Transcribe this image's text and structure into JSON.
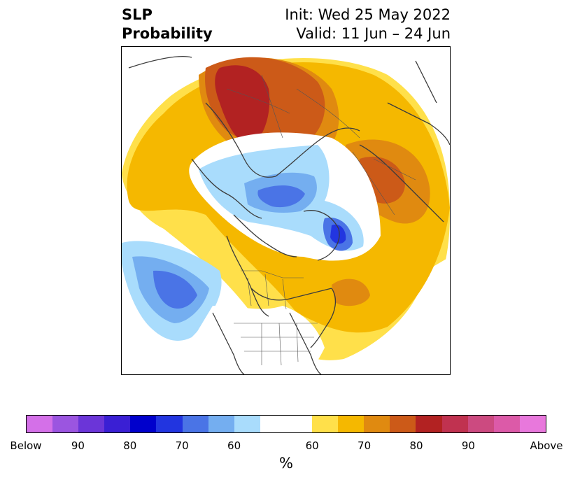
{
  "header": {
    "title_line1": "SLP",
    "title_line2": "Probability",
    "init_text": "Init: Wed 25 May 2022",
    "valid_text": "Valid: 11 Jun – 24 Jun"
  },
  "map": {
    "projection": "north-polar-stereographic",
    "coastline_color": "#3c3c3c",
    "anomalies": [
      {
        "region": "northern-europe-scandinavia",
        "sign": "above",
        "peak_category": "75-80"
      },
      {
        "region": "siberia-central-asia",
        "sign": "above",
        "peak_category": "70-75"
      },
      {
        "region": "north-atlantic-east-of-canada",
        "sign": "above",
        "peak_category": "65-70"
      },
      {
        "region": "north-pacific",
        "sign": "below",
        "peak_category": "70-75"
      },
      {
        "region": "arctic-ocean-barents",
        "sign": "below",
        "peak_category": "70-75"
      },
      {
        "region": "beaufort-sea",
        "sign": "below",
        "peak_category": "80-85"
      }
    ]
  },
  "colorbar": {
    "unit_label": "%",
    "colors": [
      "#d470e8",
      "#9b55e0",
      "#6b35d8",
      "#3a1fd4",
      "#0000cc",
      "#2235e0",
      "#4a74e6",
      "#74aef0",
      "#a9dcfc",
      "#ffffff",
      "#ffe04a",
      "#f5b800",
      "#e08a10",
      "#cc5a18",
      "#b22222",
      "#c03250",
      "#cc4a80",
      "#dc5aa8",
      "#e878dc"
    ],
    "wide_index": 9,
    "tick_labels": [
      "Below",
      "90",
      "80",
      "70",
      "60",
      "60",
      "70",
      "80",
      "90",
      "Above"
    ]
  }
}
